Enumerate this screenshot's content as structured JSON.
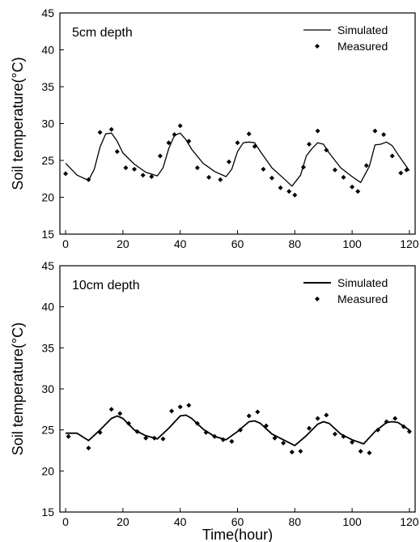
{
  "chart_data": [
    {
      "type": "line",
      "panel_label": "5cm depth",
      "ylabel": "Soil temperature(°C)",
      "xlabel": "",
      "xlim": [
        -2,
        122
      ],
      "ylim": [
        15,
        45
      ],
      "x_ticks": [
        "0",
        "20",
        "40",
        "60",
        "80",
        "100",
        "120"
      ],
      "y_ticks": [
        "15",
        "20",
        "25",
        "30",
        "35",
        "40",
        "45"
      ],
      "legend": {
        "position": "top-right",
        "entries": [
          "Simulated",
          "Measured"
        ]
      },
      "series": [
        {
          "name": "Simulated",
          "style": "line",
          "x": [
            0,
            4,
            8,
            10,
            12,
            14,
            16,
            18,
            20,
            24,
            28,
            32,
            34,
            36,
            38,
            40,
            42,
            44,
            48,
            52,
            56,
            58,
            60,
            62,
            64,
            66,
            68,
            72,
            76,
            79,
            82,
            84,
            86,
            88,
            90,
            92,
            96,
            100,
            103,
            106,
            108,
            110,
            112,
            114,
            116,
            120
          ],
          "y": [
            24.6,
            23.0,
            22.3,
            23.8,
            26.8,
            28.6,
            28.7,
            27.6,
            26.0,
            24.5,
            23.4,
            22.9,
            24.0,
            26.6,
            28.4,
            28.7,
            27.8,
            26.5,
            24.6,
            23.5,
            22.8,
            23.8,
            26.2,
            27.4,
            27.5,
            27.4,
            26.2,
            24.0,
            22.6,
            21.5,
            23.0,
            25.6,
            26.6,
            27.4,
            27.2,
            26.0,
            24.0,
            22.8,
            22.0,
            24.2,
            27.1,
            27.2,
            27.5,
            27.0,
            25.8,
            23.6
          ]
        },
        {
          "name": "Measured",
          "style": "marker",
          "x": [
            0,
            8,
            12,
            16,
            18,
            21,
            24,
            27,
            30,
            33,
            36,
            38,
            40,
            43,
            46,
            50,
            54,
            57,
            60,
            64,
            66,
            69,
            72,
            75,
            78,
            80,
            83,
            85,
            88,
            91,
            94,
            97,
            100,
            102,
            105,
            108,
            111,
            114,
            117,
            119
          ],
          "y": [
            23.2,
            22.4,
            28.8,
            29.2,
            26.2,
            24.0,
            23.8,
            23.0,
            22.8,
            25.6,
            27.4,
            28.5,
            29.7,
            27.6,
            24.0,
            22.7,
            22.4,
            24.8,
            27.4,
            28.6,
            26.9,
            23.8,
            22.6,
            21.3,
            20.8,
            20.3,
            24.1,
            27.2,
            29.0,
            26.4,
            23.7,
            22.7,
            21.4,
            20.8,
            24.3,
            29.0,
            28.5,
            25.6,
            23.3,
            23.7
          ]
        }
      ]
    },
    {
      "type": "line",
      "panel_label": "10cm depth",
      "ylabel": "Soil temperature(°C)",
      "xlabel": "Time(hour)",
      "xlim": [
        -2,
        122
      ],
      "ylim": [
        15,
        45
      ],
      "x_ticks": [
        "0",
        "20",
        "40",
        "60",
        "80",
        "100",
        "120"
      ],
      "y_ticks": [
        "15",
        "20",
        "25",
        "30",
        "35",
        "40",
        "45"
      ],
      "legend": {
        "position": "top-right",
        "entries": [
          "Simulated",
          "Measured"
        ]
      },
      "series": [
        {
          "name": "Simulated",
          "style": "line",
          "x": [
            0,
            4,
            8,
            12,
            16,
            18,
            20,
            24,
            28,
            32,
            36,
            40,
            42,
            44,
            48,
            52,
            56,
            60,
            64,
            66,
            68,
            72,
            76,
            80,
            84,
            88,
            90,
            92,
            96,
            100,
            104,
            108,
            112,
            114,
            116,
            120
          ],
          "y": [
            24.6,
            24.6,
            23.7,
            25.0,
            26.4,
            26.7,
            26.4,
            25.0,
            24.3,
            23.9,
            25.2,
            26.7,
            26.8,
            26.4,
            25.1,
            24.2,
            23.8,
            24.8,
            26.0,
            26.1,
            25.8,
            24.5,
            23.8,
            23.1,
            24.3,
            25.7,
            26.0,
            25.8,
            24.5,
            23.8,
            23.3,
            24.8,
            25.9,
            26.0,
            25.9,
            25.0
          ]
        },
        {
          "name": "Measured",
          "style": "marker",
          "x": [
            1,
            8,
            12,
            16,
            19,
            22,
            25,
            28,
            31,
            34,
            37,
            40,
            43,
            46,
            49,
            52,
            55,
            58,
            61,
            64,
            67,
            70,
            73,
            76,
            79,
            82,
            85,
            88,
            91,
            94,
            97,
            100,
            103,
            106,
            109,
            112,
            115,
            118,
            120
          ],
          "y": [
            24.2,
            22.8,
            24.7,
            27.5,
            27.0,
            25.8,
            24.8,
            24.0,
            24.0,
            23.9,
            27.3,
            27.8,
            28.0,
            25.8,
            24.7,
            24.2,
            23.8,
            23.6,
            25.0,
            26.7,
            27.2,
            25.5,
            24.0,
            23.4,
            22.3,
            22.4,
            25.2,
            26.4,
            26.8,
            24.5,
            24.2,
            23.5,
            22.4,
            22.2,
            25.0,
            26.0,
            26.4,
            25.4,
            24.8
          ]
        }
      ]
    }
  ]
}
